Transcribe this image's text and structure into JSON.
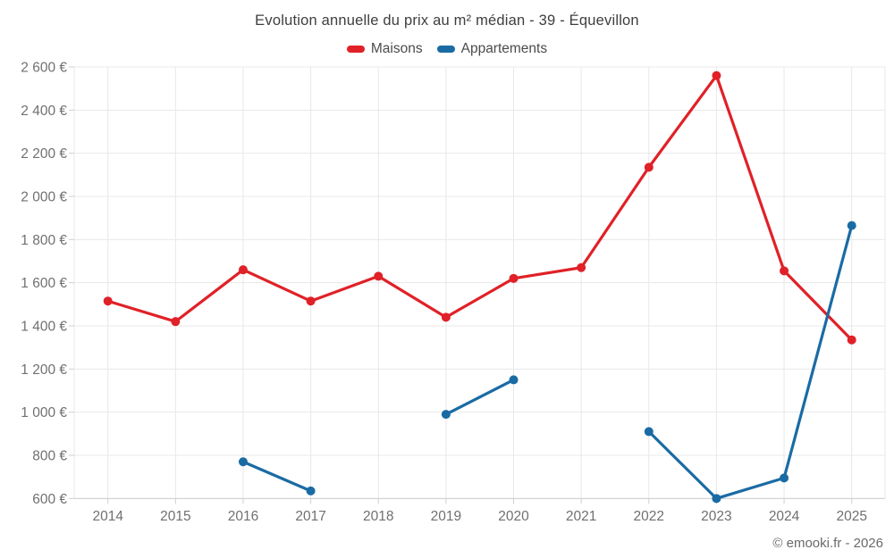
{
  "chart": {
    "title": "Evolution annuelle du prix au m² médian - 39 - Équevillon",
    "copyright": "© emooki.fr - 2026"
  },
  "chart_data": {
    "type": "line",
    "title": "Evolution annuelle du prix au m² médian - 39 - Équevillon",
    "categories": [
      "2014",
      "2015",
      "2016",
      "2017",
      "2018",
      "2019",
      "2020",
      "2021",
      "2022",
      "2023",
      "2024",
      "2025"
    ],
    "series": [
      {
        "name": "Maisons",
        "color": "#e02127",
        "values": [
          1515,
          1420,
          1660,
          1515,
          1630,
          1440,
          1620,
          1670,
          2135,
          2560,
          1655,
          1335
        ]
      },
      {
        "name": "Appartements",
        "color": "#1a6ba4",
        "values": [
          null,
          null,
          770,
          635,
          null,
          990,
          1150,
          null,
          910,
          600,
          695,
          1865
        ]
      }
    ],
    "xlabel": "",
    "ylabel": "",
    "ylim": [
      600,
      2600
    ],
    "y_ticks": [
      {
        "value": 600,
        "label": "600 €"
      },
      {
        "value": 800,
        "label": "800 €"
      },
      {
        "value": 1000,
        "label": "1 000 €"
      },
      {
        "value": 1200,
        "label": "1 200 €"
      },
      {
        "value": 1400,
        "label": "1 400 €"
      },
      {
        "value": 1600,
        "label": "1 600 €"
      },
      {
        "value": 1800,
        "label": "1 800 €"
      },
      {
        "value": 2000,
        "label": "2 000 €"
      },
      {
        "value": 2200,
        "label": "2 200 €"
      },
      {
        "value": 2400,
        "label": "2 400 €"
      },
      {
        "value": 2600,
        "label": "2 600 €"
      }
    ],
    "grid": true,
    "legend_position": "top",
    "styles": {
      "grid_color": "#e8e8e8",
      "axis_color": "#cfcfcf",
      "tick_label_color": "#707070"
    }
  }
}
